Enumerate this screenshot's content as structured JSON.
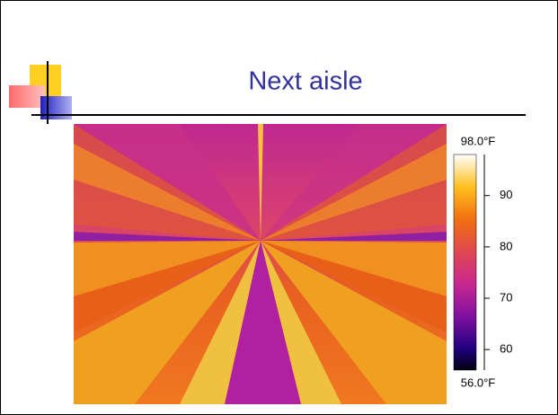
{
  "slide": {
    "title": "Next aisle"
  },
  "colorbar": {
    "range": [
      {
        "value": 56,
        "label": "56.0°F"
      },
      {
        "value": 98,
        "label": "98.0°F"
      }
    ],
    "ticks": [
      60,
      70,
      80,
      90
    ]
  }
}
